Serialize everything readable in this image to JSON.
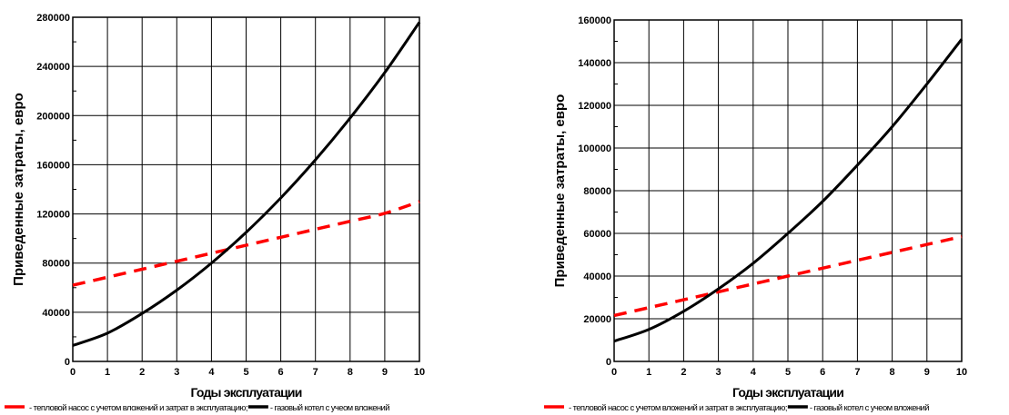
{
  "chart_data": [
    {
      "type": "line",
      "xlabel": "Годы эксплуатации",
      "ylabel": "Приведенные затраты, евро",
      "x": [
        0,
        1,
        2,
        3,
        4,
        5,
        6,
        7,
        8,
        9,
        10
      ],
      "xlim": [
        0,
        10
      ],
      "ylim": [
        0,
        280000
      ],
      "yticks": [
        "0",
        "40000",
        "80000",
        "120000",
        "160000",
        "200000",
        "240000",
        "280000"
      ],
      "grid": true,
      "legend_position": "bottom",
      "series": [
        {
          "name": "- тепловой насос с учетом вложений и затрат в эксплуатацию;",
          "color": "#ff0000",
          "style": "dashed",
          "values": [
            62000,
            68500,
            75000,
            81500,
            88000,
            94500,
            101000,
            107500,
            114000,
            120500,
            130000
          ]
        },
        {
          "name": "- газовый котел с учеом вложений",
          "color": "#000000",
          "style": "solid",
          "values": [
            13000,
            23000,
            39000,
            58000,
            80000,
            105000,
            133000,
            164000,
            198000,
            235000,
            276000
          ]
        }
      ]
    },
    {
      "type": "line",
      "xlabel": "Годы эксплуатации",
      "ylabel": "Приведенные затраты, евро",
      "x": [
        0,
        1,
        2,
        3,
        4,
        5,
        6,
        7,
        8,
        9,
        10
      ],
      "xlim": [
        0,
        10
      ],
      "ylim": [
        0,
        160000
      ],
      "yticks": [
        "0",
        "20000",
        "40000",
        "60000",
        "80000",
        "100000",
        "120000",
        "140000",
        "160000"
      ],
      "grid": true,
      "legend_position": "bottom",
      "series": [
        {
          "name": "- тепловой насос с учетом вложений и затрат в эксплуатацию;",
          "color": "#ff0000",
          "style": "dashed",
          "values": [
            21500,
            25200,
            28900,
            32600,
            36300,
            40000,
            43700,
            47400,
            51100,
            54800,
            58500
          ]
        },
        {
          "name": "- газовый котел с учеом вложений",
          "color": "#000000",
          "style": "solid",
          "values": [
            9500,
            15000,
            23500,
            34000,
            46000,
            60000,
            75000,
            92000,
            110000,
            130000,
            151000
          ]
        }
      ]
    }
  ]
}
